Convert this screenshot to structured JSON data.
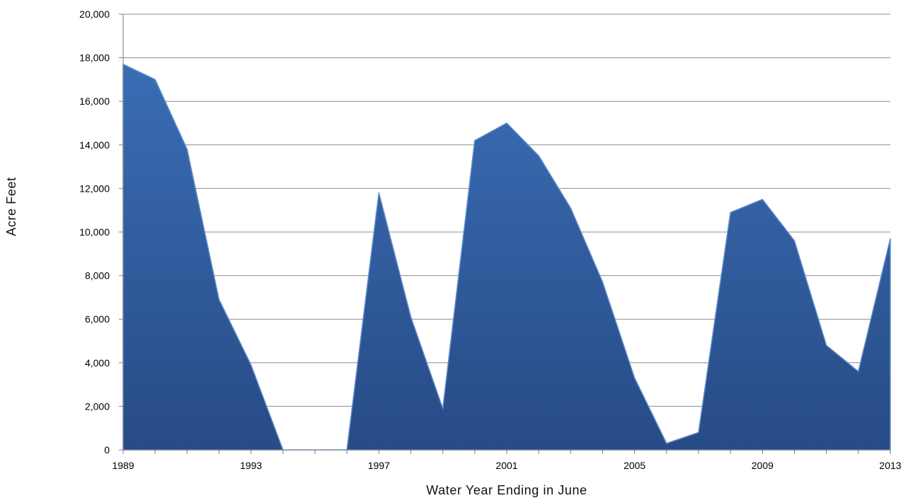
{
  "chart_data": {
    "type": "area",
    "title": "",
    "xlabel": "Water Year Ending in June",
    "ylabel": "Acre Feet",
    "xlim": [
      1989,
      2013
    ],
    "ylim": [
      0,
      20000
    ],
    "y_ticks": [
      0,
      2000,
      4000,
      6000,
      8000,
      10000,
      12000,
      14000,
      16000,
      18000,
      20000
    ],
    "y_tick_labels": [
      "0",
      "2,000",
      "4,000",
      "6,000",
      "8,000",
      "10,000",
      "12,000",
      "14,000",
      "16,000",
      "18,000",
      "20,000"
    ],
    "x_ticks": [
      1989,
      1993,
      1997,
      2001,
      2005,
      2009,
      2013
    ],
    "x_tick_labels": [
      "1989",
      "1993",
      "1997",
      "2001",
      "2005",
      "2009",
      "2013"
    ],
    "grid": true,
    "x": [
      1989,
      1990,
      1991,
      1992,
      1993,
      1994,
      1995,
      1996,
      1997,
      1998,
      1999,
      2000,
      2001,
      2002,
      2003,
      2004,
      2005,
      2006,
      2007,
      2008,
      2009,
      2010,
      2011,
      2012,
      2013
    ],
    "series": [
      {
        "values": [
          17700,
          17000,
          13800,
          6900,
          3900,
          0,
          0,
          0,
          11800,
          6100,
          1900,
          14200,
          15000,
          13500,
          11100,
          7700,
          3300,
          300,
          800,
          10900,
          11500,
          9600,
          4800,
          3600,
          9700
        ],
        "color": "#30599c"
      }
    ]
  }
}
